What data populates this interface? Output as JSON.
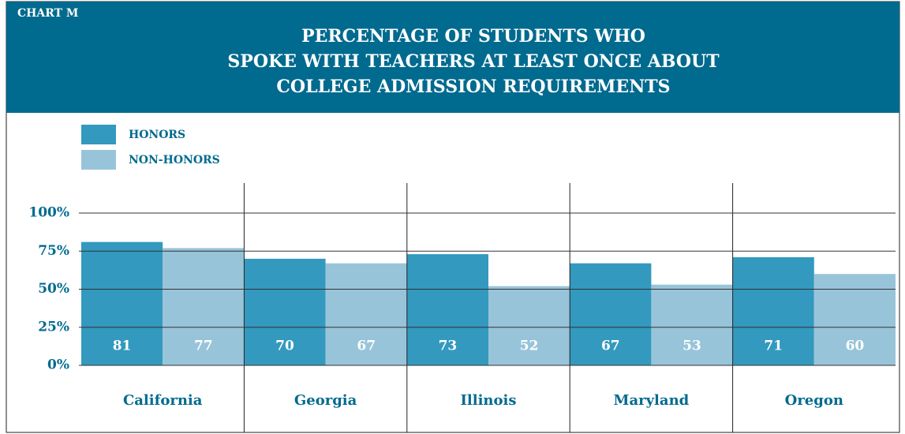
{
  "chart_data": {
    "type": "bar",
    "label": "CHART M",
    "title": [
      "PERCENTAGE OF STUDENTS WHO",
      "SPOKE WITH TEACHERS AT LEAST ONCE ABOUT",
      "COLLEGE ADMISSION REQUIREMENTS"
    ],
    "categories": [
      "California",
      "Georgia",
      "Illinois",
      "Maryland",
      "Oregon"
    ],
    "series": [
      {
        "name": "HONORS",
        "color": "#3399bf",
        "values": [
          81,
          70,
          73,
          67,
          71
        ]
      },
      {
        "name": "NON-HONORS",
        "color": "#98c4da",
        "values": [
          77,
          67,
          52,
          53,
          60
        ]
      }
    ],
    "ylim": [
      0,
      100
    ],
    "yticks": [
      {
        "value": 0,
        "label": "0%"
      },
      {
        "value": 25,
        "label": "25%"
      },
      {
        "value": 50,
        "label": "50%"
      },
      {
        "value": 75,
        "label": "75%"
      },
      {
        "value": 100,
        "label": "100%"
      }
    ],
    "grid": true,
    "legend": "top-left"
  }
}
